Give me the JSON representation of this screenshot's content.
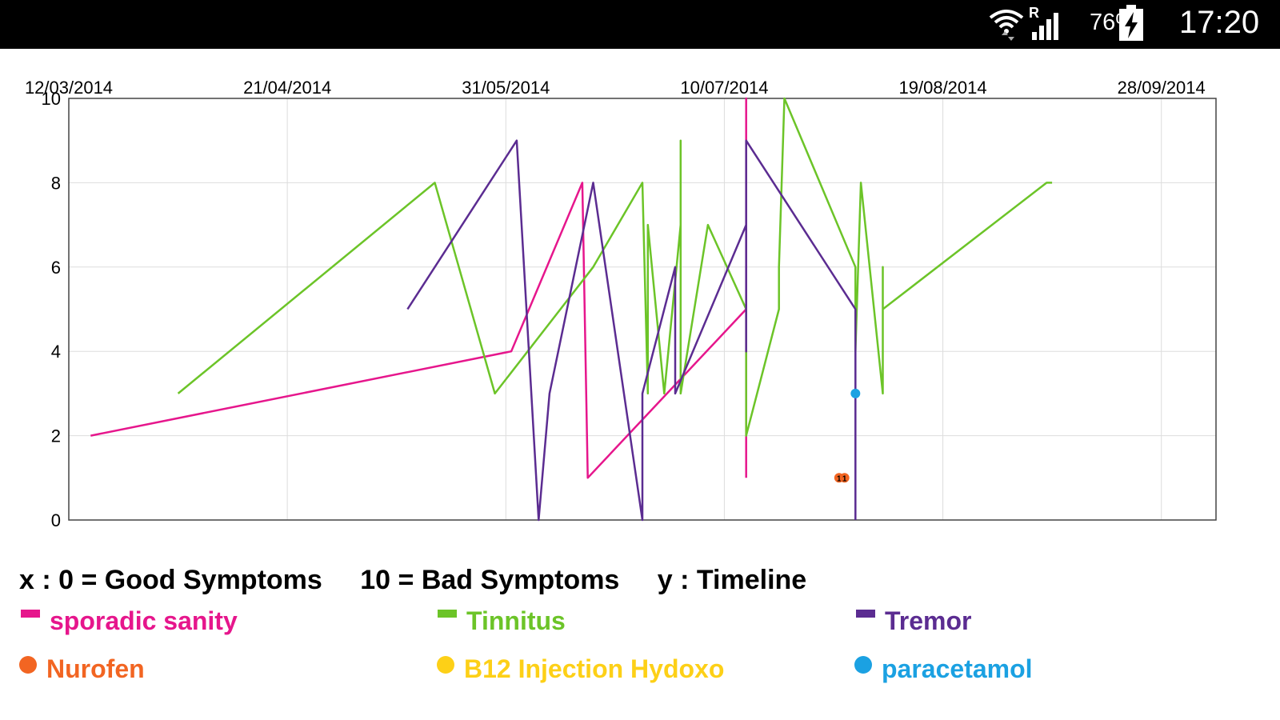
{
  "status_bar": {
    "battery_percent": "76%",
    "time": "17:20",
    "signal_roaming": "R"
  },
  "caption": {
    "x_desc": "x : 0 = Good Symptoms",
    "x_desc2": "10 = Bad Symptoms",
    "y_desc": "y : Timeline"
  },
  "chart_data": {
    "type": "line",
    "title": "",
    "xlabel": "",
    "ylabel": "",
    "x_ticks": [
      "12/03/2014",
      "21/04/2014",
      "31/05/2014",
      "10/07/2014",
      "19/08/2014",
      "28/09/2014"
    ],
    "xlim": [
      "2014-03-12",
      "2014-10-08"
    ],
    "ylim": [
      0,
      10.0
    ],
    "y_ticks": [
      0,
      2,
      4,
      6,
      8,
      10
    ],
    "grid": true,
    "legend_position": "bottom",
    "series": [
      {
        "name": "sporadic sanity",
        "color": "#e6168c",
        "marker": "bar",
        "points": [
          [
            "2014-03-16",
            2
          ],
          [
            "2014-06-01",
            4
          ],
          [
            "2014-06-14",
            8
          ],
          [
            "2014-06-15",
            1
          ],
          [
            "2014-07-14",
            5
          ],
          [
            "2014-07-14",
            10
          ],
          [
            "2014-07-14",
            1
          ]
        ]
      },
      {
        "name": "Tinnitus",
        "color": "#6cc428",
        "marker": "bar",
        "points": [
          [
            "2014-04-01",
            3
          ],
          [
            "2014-05-18",
            8
          ],
          [
            "2014-05-29",
            3
          ],
          [
            "2014-06-16",
            6
          ],
          [
            "2014-06-25",
            8
          ],
          [
            "2014-06-26",
            3
          ],
          [
            "2014-06-26",
            7
          ],
          [
            "2014-06-29",
            3
          ],
          [
            "2014-07-02",
            7
          ],
          [
            "2014-07-02",
            9
          ],
          [
            "2014-07-02",
            3
          ],
          [
            "2014-07-07",
            7
          ],
          [
            "2014-07-14",
            5
          ],
          [
            "2014-07-14",
            2
          ],
          [
            "2014-07-20",
            5
          ],
          [
            "2014-07-20",
            6
          ],
          [
            "2014-07-21",
            10
          ],
          [
            "2014-08-03",
            6
          ],
          [
            "2014-08-03",
            4
          ],
          [
            "2014-08-04",
            8
          ],
          [
            "2014-08-08",
            3
          ],
          [
            "2014-08-08",
            6
          ],
          [
            "2014-08-08",
            5
          ],
          [
            "2014-09-07",
            8
          ],
          [
            "2014-09-08",
            8
          ]
        ]
      },
      {
        "name": "Tremor",
        "color": "#5b2c91",
        "marker": "bar",
        "points": [
          [
            "2014-05-13",
            5
          ],
          [
            "2014-06-02",
            9
          ],
          [
            "2014-06-06",
            0
          ],
          [
            "2014-06-08",
            3
          ],
          [
            "2014-06-16",
            8
          ],
          [
            "2014-06-25",
            0
          ],
          [
            "2014-06-25",
            3
          ],
          [
            "2014-07-01",
            6
          ],
          [
            "2014-07-01",
            3
          ],
          [
            "2014-07-14",
            7
          ],
          [
            "2014-07-14",
            4
          ],
          [
            "2014-07-14",
            9
          ],
          [
            "2014-08-03",
            5
          ],
          [
            "2014-08-03",
            0
          ]
        ]
      },
      {
        "name": "Nurofen",
        "color": "#f26522",
        "marker": "dot",
        "points": [
          [
            "2014-07-31",
            1
          ],
          [
            "2014-08-01",
            1
          ]
        ],
        "point_labels": [
          "1",
          "1"
        ]
      },
      {
        "name": "B12 Injection Hydoxo",
        "color": "#fdd017",
        "marker": "dot",
        "points": []
      },
      {
        "name": "paracetamol",
        "color": "#1ba1e2",
        "marker": "dot",
        "points": [
          [
            "2014-08-03",
            3
          ]
        ]
      }
    ]
  }
}
